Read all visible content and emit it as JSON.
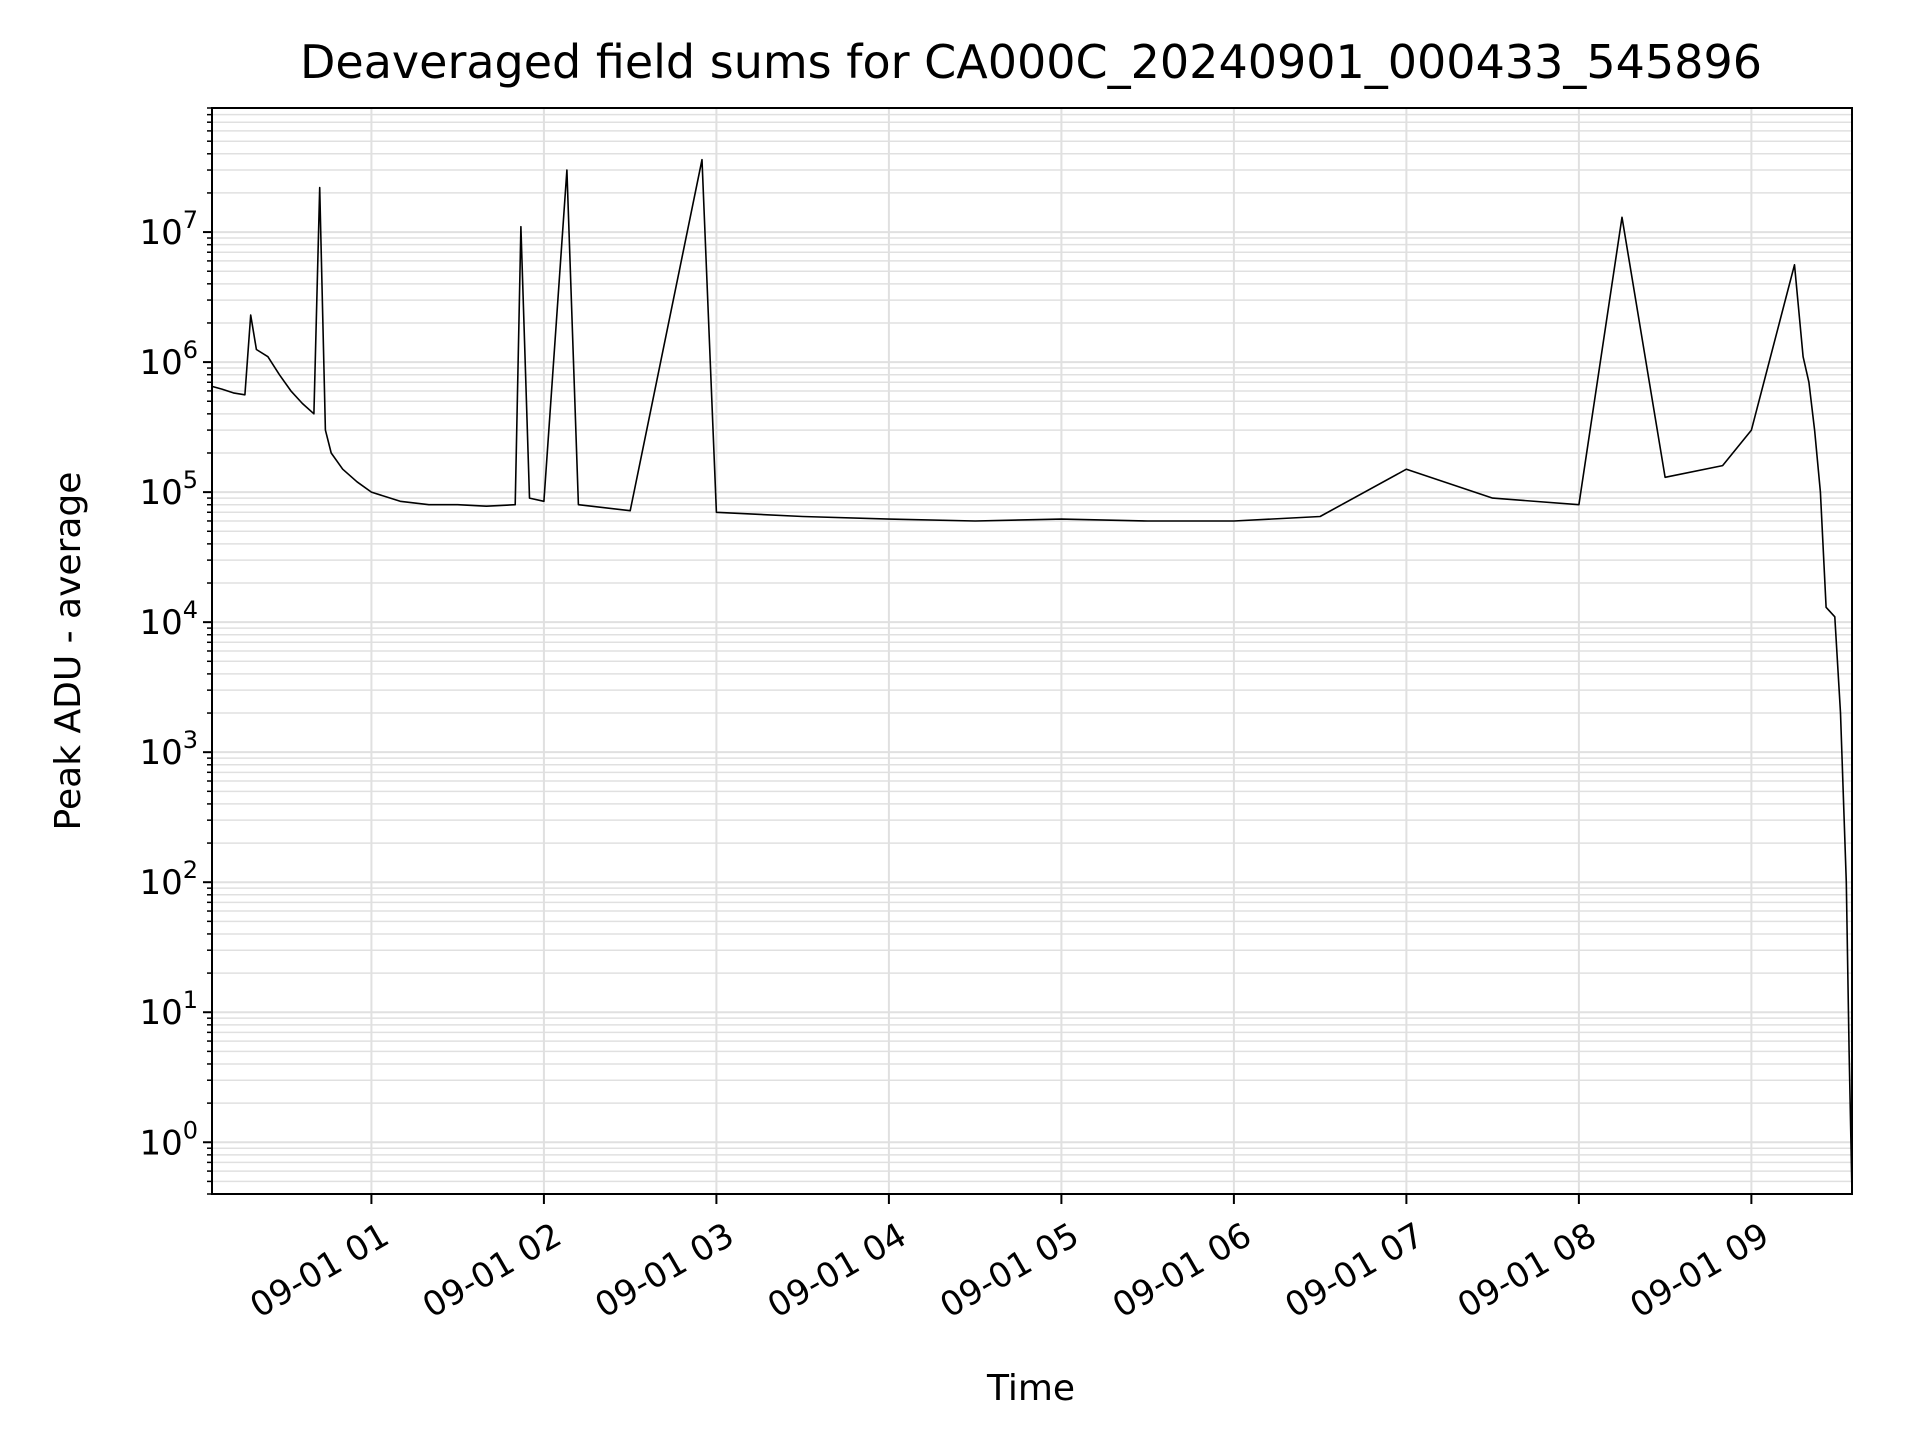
{
  "chart_data": {
    "type": "line",
    "title": "Deaveraged field sums for CA000C_20240901_000433_545896",
    "xlabel": "Time",
    "ylabel": "Peak ADU - average",
    "yscale": "log",
    "ylim": [
      0.4,
      90000000
    ],
    "xlim": [
      "2024-09-01 00:04:33",
      "2024-09-01 09:35:00"
    ],
    "grid": true,
    "line_color": "#000000",
    "grid_color": "#e0e0e0",
    "x_tick_labels": [
      "09-01 01",
      "09-01 02",
      "09-01 03",
      "09-01 04",
      "09-01 05",
      "09-01 06",
      "09-01 07",
      "09-01 08",
      "09-01 09"
    ],
    "x_tick_times": [
      "2024-09-01 01:00:00",
      "2024-09-01 02:00:00",
      "2024-09-01 03:00:00",
      "2024-09-01 04:00:00",
      "2024-09-01 05:00:00",
      "2024-09-01 06:00:00",
      "2024-09-01 07:00:00",
      "2024-09-01 08:00:00",
      "2024-09-01 09:00:00"
    ],
    "y_tick_labels": [
      {
        "base": "10",
        "exp": "0",
        "value": 1
      },
      {
        "base": "10",
        "exp": "1",
        "value": 10
      },
      {
        "base": "10",
        "exp": "2",
        "value": 100
      },
      {
        "base": "10",
        "exp": "3",
        "value": 1000
      },
      {
        "base": "10",
        "exp": "4",
        "value": 10000
      },
      {
        "base": "10",
        "exp": "5",
        "value": 100000
      },
      {
        "base": "10",
        "exp": "6",
        "value": 1000000
      },
      {
        "base": "10",
        "exp": "7",
        "value": 10000000
      }
    ],
    "series": [
      {
        "values": [
          [
            "2024-09-01 00:04:33",
            650000
          ],
          [
            "2024-09-01 00:08:00",
            620000
          ],
          [
            "2024-09-01 00:12:00",
            580000
          ],
          [
            "2024-09-01 00:16:00",
            560000
          ],
          [
            "2024-09-01 00:18:00",
            2300000
          ],
          [
            "2024-09-01 00:20:00",
            1250000
          ],
          [
            "2024-09-01 00:24:00",
            1100000
          ],
          [
            "2024-09-01 00:28:00",
            800000
          ],
          [
            "2024-09-01 00:32:00",
            600000
          ],
          [
            "2024-09-01 00:36:00",
            480000
          ],
          [
            "2024-09-01 00:40:00",
            400000
          ],
          [
            "2024-09-01 00:42:00",
            22000000
          ],
          [
            "2024-09-01 00:44:00",
            300000
          ],
          [
            "2024-09-01 00:46:00",
            200000
          ],
          [
            "2024-09-01 00:50:00",
            150000
          ],
          [
            "2024-09-01 00:55:00",
            120000
          ],
          [
            "2024-09-01 01:00:00",
            100000
          ],
          [
            "2024-09-01 01:10:00",
            85000
          ],
          [
            "2024-09-01 01:20:00",
            80000
          ],
          [
            "2024-09-01 01:30:00",
            80000
          ],
          [
            "2024-09-01 01:40:00",
            78000
          ],
          [
            "2024-09-01 01:50:00",
            80000
          ],
          [
            "2024-09-01 01:52:00",
            11000000
          ],
          [
            "2024-09-01 01:55:00",
            90000
          ],
          [
            "2024-09-01 02:00:00",
            85000
          ],
          [
            "2024-09-01 02:08:00",
            30000000
          ],
          [
            "2024-09-01 02:12:00",
            80000
          ],
          [
            "2024-09-01 02:30:00",
            72000
          ],
          [
            "2024-09-01 02:55:00",
            36000000
          ],
          [
            "2024-09-01 03:00:00",
            70000
          ],
          [
            "2024-09-01 03:30:00",
            65000
          ],
          [
            "2024-09-01 04:00:00",
            62000
          ],
          [
            "2024-09-01 04:30:00",
            60000
          ],
          [
            "2024-09-01 05:00:00",
            62000
          ],
          [
            "2024-09-01 05:30:00",
            60000
          ],
          [
            "2024-09-01 06:00:00",
            60000
          ],
          [
            "2024-09-01 06:30:00",
            65000
          ],
          [
            "2024-09-01 07:00:00",
            150000
          ],
          [
            "2024-09-01 07:30:00",
            90000
          ],
          [
            "2024-09-01 08:00:00",
            80000
          ],
          [
            "2024-09-01 08:15:00",
            13000000
          ],
          [
            "2024-09-01 08:30:00",
            130000
          ],
          [
            "2024-09-01 08:50:00",
            160000
          ],
          [
            "2024-09-01 09:00:00",
            300000
          ],
          [
            "2024-09-01 09:15:00",
            5600000
          ],
          [
            "2024-09-01 09:18:00",
            1100000
          ],
          [
            "2024-09-01 09:20:00",
            700000
          ],
          [
            "2024-09-01 09:22:00",
            300000
          ],
          [
            "2024-09-01 09:24:00",
            100000
          ],
          [
            "2024-09-01 09:26:00",
            13000
          ],
          [
            "2024-09-01 09:29:00",
            11000
          ],
          [
            "2024-09-01 09:31:00",
            2000
          ],
          [
            "2024-09-01 09:33:00",
            100
          ],
          [
            "2024-09-01 09:34:00",
            5
          ],
          [
            "2024-09-01 09:35:00",
            0.4
          ]
        ]
      }
    ]
  }
}
